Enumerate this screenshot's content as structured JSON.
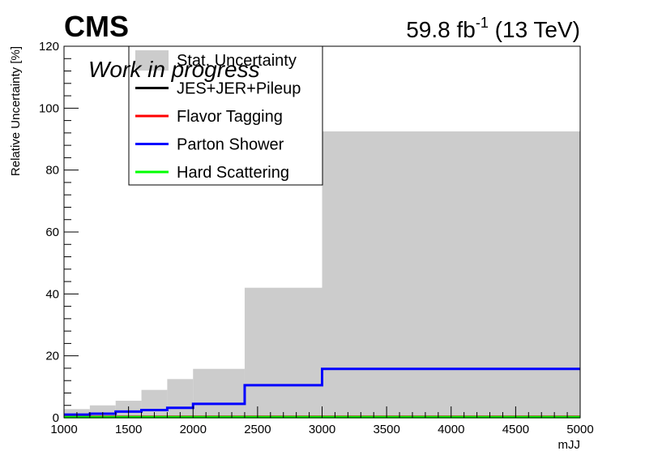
{
  "header": {
    "experiment": "CMS",
    "lumi_value": "59.8 fb",
    "lumi_exponent": "-1",
    "energy": "(13 TeV)",
    "status": "Work in progress"
  },
  "chart_data": {
    "type": "histogram",
    "xlabel": "mJJ",
    "ylabel": "Relative Uncertainty [%]",
    "xlim": [
      1000,
      5000
    ],
    "ylim": [
      0,
      120
    ],
    "x_ticks": [
      1000,
      1500,
      2000,
      2500,
      3000,
      3500,
      4000,
      4500,
      5000
    ],
    "y_ticks": [
      0,
      20,
      40,
      60,
      80,
      100,
      120
    ],
    "bin_edges": [
      1000,
      1200,
      1400,
      1600,
      1800,
      2000,
      2400,
      3000,
      5000
    ],
    "series": [
      {
        "name": "Stat. Uncertainty",
        "style": "fill",
        "color": "#cccccc",
        "values": [
          2.8,
          4.0,
          5.5,
          9.0,
          12.5,
          15.8,
          42.0,
          92.5
        ]
      },
      {
        "name": "JES+JER+Pileup",
        "style": "line",
        "color": "#000000",
        "values": [
          0.3,
          0.3,
          0.3,
          0.3,
          0.3,
          0.3,
          0.3,
          0.3
        ]
      },
      {
        "name": "Flavor Tagging",
        "style": "line",
        "color": "#ff0000",
        "values": [
          0.3,
          0.3,
          0.3,
          0.3,
          0.3,
          0.3,
          0.3,
          0.3
        ]
      },
      {
        "name": "Parton Shower",
        "style": "line",
        "color": "#0000ff",
        "values": [
          1.0,
          1.3,
          2.0,
          2.5,
          3.2,
          4.5,
          10.5,
          15.8
        ]
      },
      {
        "name": "Hard Scattering",
        "style": "line",
        "color": "#00ff00",
        "values": [
          0.2,
          0.2,
          0.2,
          0.2,
          0.2,
          0.2,
          0.2,
          0.2
        ]
      }
    ],
    "legend_placement": "top-left",
    "grid": false
  }
}
